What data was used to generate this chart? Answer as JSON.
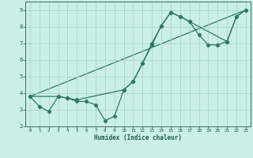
{
  "title": "",
  "xlabel": "Humidex (Indice chaleur)",
  "bg_color": "#cceee8",
  "line_color": "#2a7a6a",
  "grid_color": "#aad4ce",
  "xlim": [
    -0.5,
    23.5
  ],
  "ylim": [
    2,
    9.5
  ],
  "xticks": [
    0,
    1,
    2,
    3,
    4,
    5,
    6,
    7,
    8,
    9,
    10,
    11,
    12,
    13,
    14,
    15,
    16,
    17,
    18,
    19,
    20,
    21,
    22,
    23
  ],
  "yticks": [
    2,
    3,
    4,
    5,
    6,
    7,
    8,
    9
  ],
  "line1_x": [
    0,
    1,
    2,
    3,
    4,
    5,
    6,
    7,
    8,
    9,
    10,
    11,
    12,
    13,
    14,
    15,
    16,
    17,
    18,
    19,
    20,
    21,
    22,
    23
  ],
  "line1_y": [
    3.8,
    3.2,
    2.9,
    3.8,
    3.7,
    3.5,
    3.5,
    3.3,
    2.35,
    2.6,
    4.2,
    4.7,
    5.8,
    6.9,
    8.05,
    8.85,
    8.6,
    8.3,
    7.5,
    6.9,
    6.9,
    7.1,
    8.6,
    9.0
  ],
  "line2_x": [
    0,
    3,
    4,
    5,
    10,
    11,
    12,
    13,
    14,
    15,
    16,
    17,
    21,
    22,
    23
  ],
  "line2_y": [
    3.8,
    3.8,
    3.7,
    3.6,
    4.2,
    4.7,
    5.8,
    7.0,
    8.05,
    8.85,
    8.6,
    8.3,
    7.1,
    8.6,
    9.0
  ],
  "line3_x": [
    0,
    23
  ],
  "line3_y": [
    3.8,
    9.0
  ]
}
